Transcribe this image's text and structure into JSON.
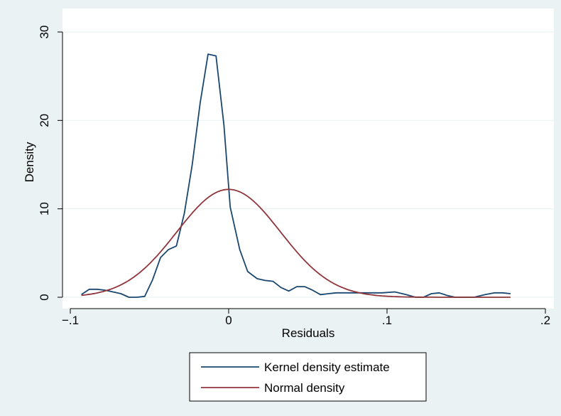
{
  "chart_data": {
    "type": "line",
    "title": "",
    "xlabel": "Residuals",
    "ylabel": "Density",
    "xlim": [
      -0.1,
      0.2
    ],
    "ylim": [
      0,
      30
    ],
    "x_ticks": [
      {
        "value": -0.1,
        "label": "−.1"
      },
      {
        "value": 0,
        "label": "0"
      },
      {
        "value": 0.1,
        "label": ".1"
      },
      {
        "value": 0.2,
        "label": ".2"
      }
    ],
    "y_ticks": [
      {
        "value": 0,
        "label": "0"
      },
      {
        "value": 10,
        "label": "10"
      },
      {
        "value": 20,
        "label": "20"
      },
      {
        "value": 30,
        "label": "30"
      }
    ],
    "grid": true,
    "legend_position": "bottom",
    "series": [
      {
        "name": "Kernel density estimate",
        "color": "#1a476f",
        "x": [
          -0.093,
          -0.088,
          -0.083,
          -0.078,
          -0.073,
          -0.068,
          -0.063,
          -0.058,
          -0.053,
          -0.048,
          -0.043,
          -0.038,
          -0.033,
          -0.028,
          -0.023,
          -0.018,
          -0.013,
          -0.008,
          -0.003,
          0.001,
          0.007,
          0.012,
          0.018,
          0.023,
          0.028,
          0.033,
          0.038,
          0.043,
          0.048,
          0.053,
          0.058,
          0.063,
          0.068,
          0.073,
          0.078,
          0.085,
          0.09,
          0.097,
          0.105,
          0.112,
          0.118,
          0.123,
          0.128,
          0.133,
          0.138,
          0.143,
          0.148,
          0.155,
          0.162,
          0.168,
          0.173,
          0.178
        ],
        "y": [
          0.3,
          0.9,
          0.9,
          0.8,
          0.6,
          0.4,
          0.0,
          0.0,
          0.1,
          2.0,
          4.5,
          5.4,
          5.8,
          9.5,
          15.0,
          22.0,
          27.5,
          27.3,
          19.5,
          10.2,
          5.4,
          2.9,
          2.1,
          1.9,
          1.8,
          1.1,
          0.7,
          1.2,
          1.2,
          0.8,
          0.3,
          0.4,
          0.5,
          0.5,
          0.5,
          0.5,
          0.5,
          0.5,
          0.6,
          0.3,
          0.0,
          0.0,
          0.4,
          0.5,
          0.2,
          0.0,
          0.0,
          0.0,
          0.3,
          0.5,
          0.5,
          0.4
        ]
      },
      {
        "name": "Normal density",
        "color": "#90353b",
        "mean": 0.0,
        "sd": 0.0327,
        "x_range": [
          -0.093,
          0.178
        ]
      }
    ]
  }
}
